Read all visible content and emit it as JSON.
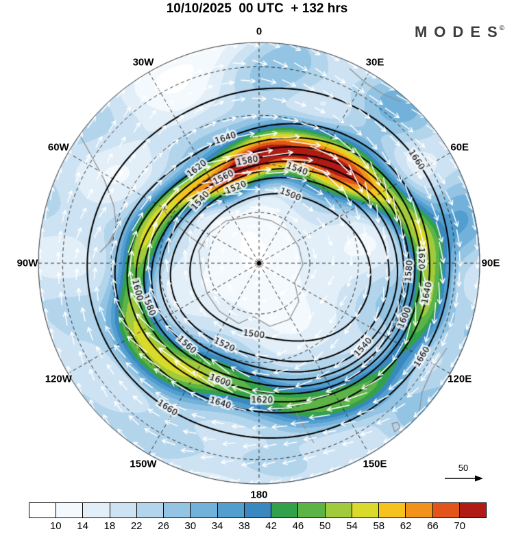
{
  "title": "10/10/2025  00 UTC  + 132 hrs",
  "brand": {
    "name": "MODES",
    "mark": "©"
  },
  "chart_data": {
    "type": "heatmap",
    "description": "South polar stereographic weather map: shaded speed field with bottom colorbar, black height contours labeled on the map, dashed lat/lon graticule, white flow arrows circling clockwise, gray coastlines",
    "colorbar": {
      "ticks": [
        10,
        14,
        18,
        22,
        26,
        30,
        34,
        38,
        42,
        46,
        50,
        54,
        58,
        62,
        66,
        70
      ],
      "colors": [
        "#ffffff",
        "#f4f9fd",
        "#e2eff8",
        "#cde3f3",
        "#b3d5ec",
        "#93c4e4",
        "#72b1da",
        "#519ecf",
        "#3a88c0",
        "#33a04c",
        "#5cb447",
        "#a2cb3b",
        "#d9da2a",
        "#f5c21e",
        "#f2921b",
        "#e2541a",
        "#b01c15"
      ]
    },
    "contours": {
      "levels": [
        1500,
        1520,
        1540,
        1560,
        1580,
        1600,
        1620,
        1640,
        1660
      ],
      "interval": 20
    },
    "longitude_labels": [
      "0",
      "30E",
      "60E",
      "90E",
      "120E",
      "150E",
      "180",
      "150W",
      "120W",
      "90W",
      "60W",
      "30W"
    ],
    "reference_arrow": {
      "label": "50"
    },
    "layout": {
      "projection": "south-polar",
      "legend_position": "bottom",
      "grid": "dashed",
      "pole_marker": true
    }
  }
}
